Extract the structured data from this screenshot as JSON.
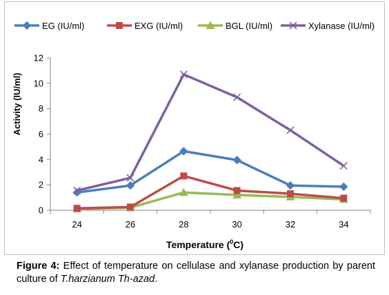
{
  "chart_data": {
    "type": "line",
    "title": "",
    "xlabel": "Temperature (",
    "xlabel_sup": "0",
    "xlabel_end": "C)",
    "ylabel": "Activity (IU/ml)",
    "categories": [
      "24",
      "26",
      "28",
      "30",
      "32",
      "34"
    ],
    "x": [
      24,
      26,
      28,
      30,
      32,
      34
    ],
    "ylim": [
      0,
      12
    ],
    "yticks": [
      0,
      2,
      4,
      6,
      8,
      10,
      12
    ],
    "grid": false,
    "legend_position": "top",
    "series": [
      {
        "name": "EG (IU/ml)",
        "color": "#4a7ebb",
        "marker": "diamond",
        "values": [
          1.4,
          1.95,
          4.65,
          3.95,
          1.95,
          1.85
        ]
      },
      {
        "name": "EXG (IU/ml)",
        "color": "#be4b48",
        "marker": "square",
        "values": [
          0.15,
          0.25,
          2.7,
          1.55,
          1.3,
          0.95
        ]
      },
      {
        "name": "BGL (IU/ml)",
        "color": "#98b954",
        "marker": "triangle",
        "values": [
          0.1,
          0.2,
          1.4,
          1.2,
          1.05,
          0.85
        ]
      },
      {
        "name": "Xylanase (IU/ml)",
        "color": "#7d5fa0",
        "marker": "x",
        "values": [
          1.55,
          2.55,
          10.7,
          8.9,
          6.3,
          3.5
        ]
      }
    ]
  },
  "caption": {
    "label": "Figure 4:",
    "text": " Effect of temperature on cellulase and xylanase production by parent culture of ",
    "organism": "T.harzianum Th-azad",
    "end": "."
  }
}
